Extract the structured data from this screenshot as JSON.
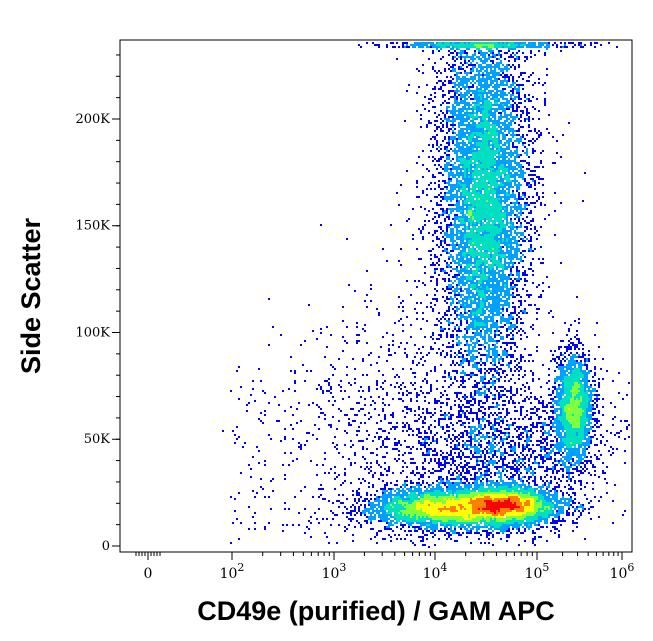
{
  "chart_data": {
    "type": "scatter",
    "subtype": "flow-cytometry-density-dot-plot",
    "xlabel": "CD49e (purified) / GAM APC",
    "ylabel": "Side Scatter",
    "x_scale": "biexponential",
    "x_ticks": [
      {
        "label": "0",
        "value": 0
      },
      {
        "label": "10",
        "sup": "2",
        "value": 100
      },
      {
        "label": "10",
        "sup": "3",
        "value": 1000
      },
      {
        "label": "10",
        "sup": "4",
        "value": 10000
      },
      {
        "label": "10",
        "sup": "5",
        "value": 100000
      },
      {
        "label": "10",
        "sup": "6",
        "value": 1000000
      }
    ],
    "y_ticks": [
      {
        "label": "0",
        "value": 0
      },
      {
        "label": "50K",
        "value": 50000
      },
      {
        "label": "100K",
        "value": 100000
      },
      {
        "label": "150K",
        "value": 150000
      },
      {
        "label": "200K",
        "value": 200000
      }
    ],
    "ylim": [
      0,
      237000
    ],
    "grid": false,
    "colormap": [
      "#0000ff",
      "#00a0ff",
      "#00e0c0",
      "#80ff40",
      "#ffff00",
      "#ff8000",
      "#ff0000"
    ],
    "populations": [
      {
        "x_center": 30000,
        "y_center": 160000,
        "density": "high"
      },
      {
        "x_center": 30000,
        "y_center": 18000,
        "density": "high"
      },
      {
        "x_center": 270000,
        "y_center": 65000,
        "density": "high"
      }
    ]
  }
}
